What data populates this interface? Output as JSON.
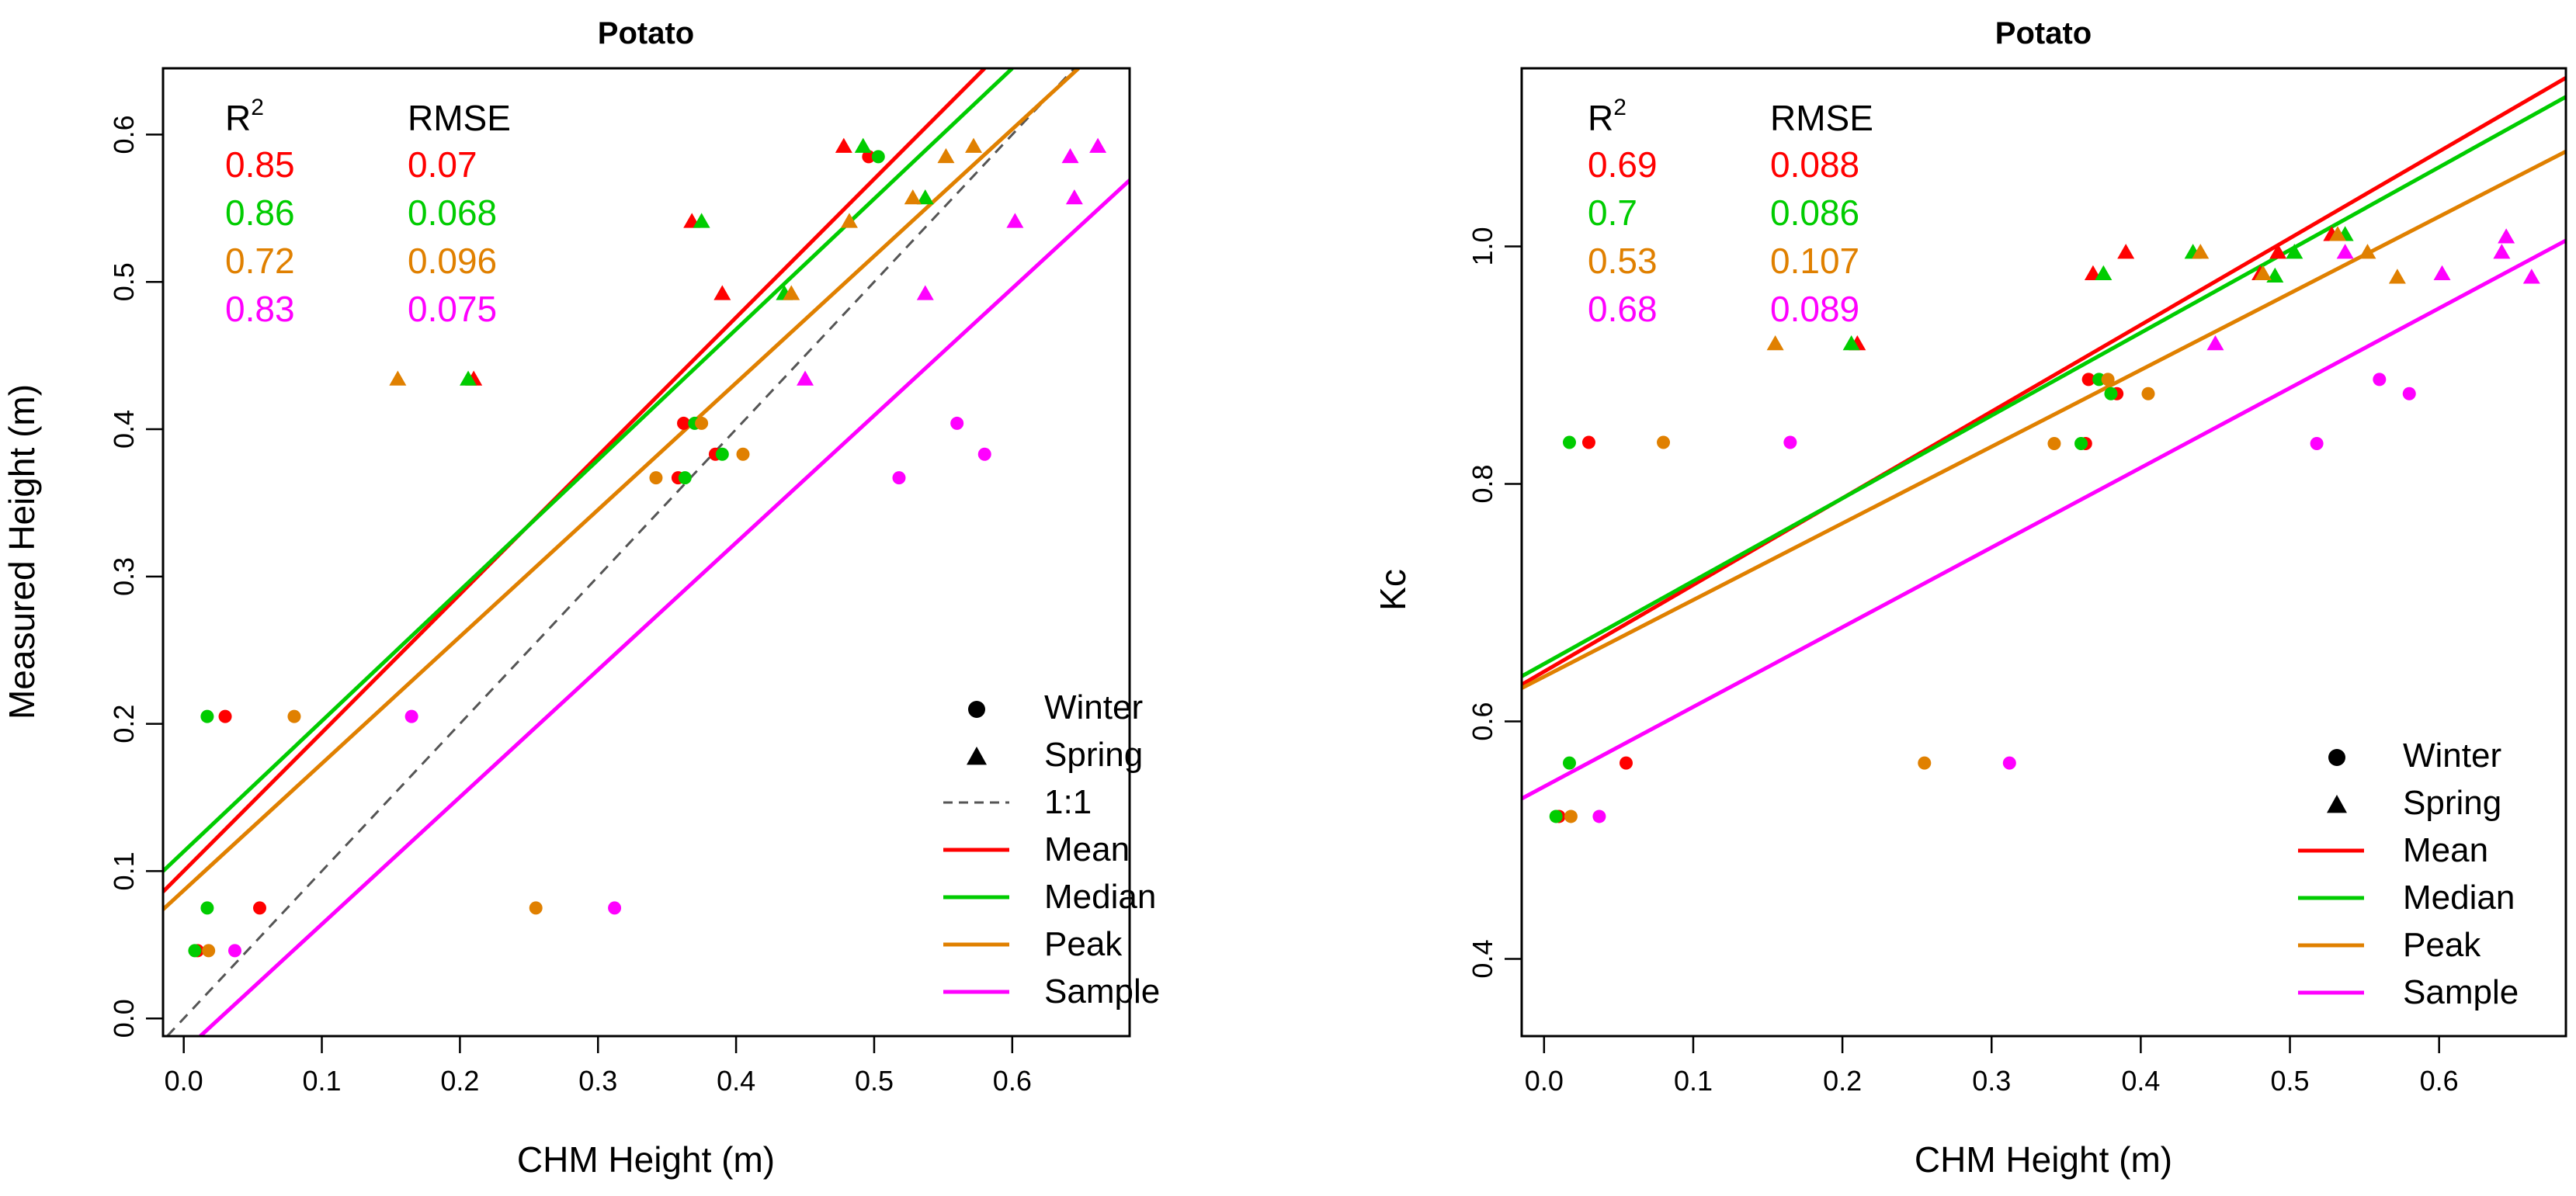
{
  "figure": {
    "caption": ""
  },
  "chart_data": [
    {
      "type": "scatter",
      "title": "Potato",
      "xlabel": "CHM Height (m)",
      "ylabel": "Measured Height (m)",
      "xlim": [
        -0.015,
        0.685
      ],
      "ylim": [
        -0.012,
        0.645
      ],
      "x_ticks": [
        "0.0",
        "0.1",
        "0.2",
        "0.3",
        "0.4",
        "0.5",
        "0.6"
      ],
      "y_ticks": [
        "0.0",
        "0.1",
        "0.2",
        "0.3",
        "0.4",
        "0.5",
        "0.6"
      ],
      "stats": {
        "r2_label": "R",
        "r2_superscript": "2",
        "rmse_label": "RMSE",
        "rows": [
          {
            "series": "Mean",
            "r2": "0.85",
            "rmse": "0.07"
          },
          {
            "series": "Median",
            "r2": "0.86",
            "rmse": "0.068"
          },
          {
            "series": "Peak",
            "r2": "0.72",
            "rmse": "0.096"
          },
          {
            "series": "Sample",
            "r2": "0.83",
            "rmse": "0.075"
          }
        ]
      },
      "legend": {
        "position": "bottom-right",
        "entries": [
          {
            "label": "Winter",
            "kind": "circle"
          },
          {
            "label": "Spring",
            "kind": "triangle"
          },
          {
            "label": "1:1",
            "kind": "dashed"
          },
          {
            "label": "Mean",
            "kind": "line",
            "series": "Mean"
          },
          {
            "label": "Median",
            "kind": "line",
            "series": "Median"
          },
          {
            "label": "Peak",
            "kind": "line",
            "series": "Peak"
          },
          {
            "label": "Sample",
            "kind": "line",
            "series": "Sample"
          }
        ]
      },
      "identity_line": true,
      "series": [
        {
          "name": "Mean",
          "color": "#ff0000",
          "fit": [
            [
              -0.015,
              0.086
            ],
            [
              0.58,
              0.645
            ]
          ],
          "points": [
            {
              "x": 0.03,
              "y": 0.205,
              "s": "winter"
            },
            {
              "x": 0.055,
              "y": 0.075,
              "s": "winter"
            },
            {
              "x": 0.01,
              "y": 0.046,
              "s": "winter"
            },
            {
              "x": 0.362,
              "y": 0.404,
              "s": "winter"
            },
            {
              "x": 0.385,
              "y": 0.383,
              "s": "winter"
            },
            {
              "x": 0.358,
              "y": 0.367,
              "s": "winter"
            },
            {
              "x": 0.496,
              "y": 0.585,
              "s": "winter"
            },
            {
              "x": 0.21,
              "y": 0.434,
              "s": "spring"
            },
            {
              "x": 0.368,
              "y": 0.541,
              "s": "spring"
            },
            {
              "x": 0.39,
              "y": 0.492,
              "s": "spring"
            },
            {
              "x": 0.478,
              "y": 0.592,
              "s": "spring"
            }
          ]
        },
        {
          "name": "Median",
          "color": "#00cc00",
          "fit": [
            [
              -0.015,
              0.1
            ],
            [
              0.6,
              0.645
            ]
          ],
          "points": [
            {
              "x": 0.017,
              "y": 0.205,
              "s": "winter"
            },
            {
              "x": 0.017,
              "y": 0.075,
              "s": "winter"
            },
            {
              "x": 0.008,
              "y": 0.046,
              "s": "winter"
            },
            {
              "x": 0.37,
              "y": 0.404,
              "s": "winter"
            },
            {
              "x": 0.39,
              "y": 0.383,
              "s": "winter"
            },
            {
              "x": 0.363,
              "y": 0.367,
              "s": "winter"
            },
            {
              "x": 0.503,
              "y": 0.585,
              "s": "winter"
            },
            {
              "x": 0.206,
              "y": 0.434,
              "s": "spring"
            },
            {
              "x": 0.375,
              "y": 0.541,
              "s": "spring"
            },
            {
              "x": 0.435,
              "y": 0.492,
              "s": "spring"
            },
            {
              "x": 0.492,
              "y": 0.592,
              "s": "spring"
            },
            {
              "x": 0.537,
              "y": 0.557,
              "s": "spring"
            }
          ]
        },
        {
          "name": "Peak",
          "color": "#e08000",
          "fit": [
            [
              -0.015,
              0.074
            ],
            [
              0.648,
              0.645
            ]
          ],
          "points": [
            {
              "x": 0.08,
              "y": 0.205,
              "s": "winter"
            },
            {
              "x": 0.255,
              "y": 0.075,
              "s": "winter"
            },
            {
              "x": 0.018,
              "y": 0.046,
              "s": "winter"
            },
            {
              "x": 0.375,
              "y": 0.404,
              "s": "winter"
            },
            {
              "x": 0.405,
              "y": 0.383,
              "s": "winter"
            },
            {
              "x": 0.342,
              "y": 0.367,
              "s": "winter"
            },
            {
              "x": 0.155,
              "y": 0.434,
              "s": "spring"
            },
            {
              "x": 0.44,
              "y": 0.492,
              "s": "spring"
            },
            {
              "x": 0.482,
              "y": 0.541,
              "s": "spring"
            },
            {
              "x": 0.528,
              "y": 0.557,
              "s": "spring"
            },
            {
              "x": 0.552,
              "y": 0.585,
              "s": "spring"
            },
            {
              "x": 0.572,
              "y": 0.592,
              "s": "spring"
            }
          ]
        },
        {
          "name": "Sample",
          "color": "#ff00ff",
          "fit": [
            [
              0.012,
              -0.012
            ],
            [
              0.685,
              0.569
            ]
          ],
          "points": [
            {
              "x": 0.165,
              "y": 0.205,
              "s": "winter"
            },
            {
              "x": 0.312,
              "y": 0.075,
              "s": "winter"
            },
            {
              "x": 0.037,
              "y": 0.046,
              "s": "winter"
            },
            {
              "x": 0.56,
              "y": 0.404,
              "s": "winter"
            },
            {
              "x": 0.58,
              "y": 0.383,
              "s": "winter"
            },
            {
              "x": 0.518,
              "y": 0.367,
              "s": "winter"
            },
            {
              "x": 0.45,
              "y": 0.434,
              "s": "spring"
            },
            {
              "x": 0.537,
              "y": 0.492,
              "s": "spring"
            },
            {
              "x": 0.602,
              "y": 0.541,
              "s": "spring"
            },
            {
              "x": 0.645,
              "y": 0.557,
              "s": "spring"
            },
            {
              "x": 0.642,
              "y": 0.585,
              "s": "spring"
            },
            {
              "x": 0.662,
              "y": 0.592,
              "s": "spring"
            }
          ]
        }
      ]
    },
    {
      "type": "scatter",
      "title": "Potato",
      "xlabel": "CHM Height (m)",
      "ylabel": "Kc",
      "xlim": [
        -0.015,
        0.685
      ],
      "ylim": [
        0.335,
        1.15
      ],
      "x_ticks": [
        "0.0",
        "0.1",
        "0.2",
        "0.3",
        "0.4",
        "0.5",
        "0.6"
      ],
      "y_ticks": [
        "0.4",
        "0.6",
        "0.8",
        "1.0"
      ],
      "stats": {
        "r2_label": "R",
        "r2_superscript": "2",
        "rmse_label": "RMSE",
        "rows": [
          {
            "series": "Mean",
            "r2": "0.69",
            "rmse": "0.088"
          },
          {
            "series": "Median",
            "r2": "0.7",
            "rmse": "0.086"
          },
          {
            "series": "Peak",
            "r2": "0.53",
            "rmse": "0.107"
          },
          {
            "series": "Sample",
            "r2": "0.68",
            "rmse": "0.089"
          }
        ]
      },
      "legend": {
        "position": "bottom-right",
        "entries": [
          {
            "label": "Winter",
            "kind": "circle"
          },
          {
            "label": "Spring",
            "kind": "triangle"
          },
          {
            "label": "Mean",
            "kind": "line",
            "series": "Mean"
          },
          {
            "label": "Median",
            "kind": "line",
            "series": "Median"
          },
          {
            "label": "Peak",
            "kind": "line",
            "series": "Peak"
          },
          {
            "label": "Sample",
            "kind": "line",
            "series": "Sample"
          }
        ]
      },
      "identity_line": false,
      "series": [
        {
          "name": "Mean",
          "color": "#ff0000",
          "fit": [
            [
              -0.015,
              0.631
            ],
            [
              0.685,
              1.142
            ]
          ],
          "points": [
            {
              "x": 0.03,
              "y": 0.835,
              "s": "winter"
            },
            {
              "x": 0.055,
              "y": 0.565,
              "s": "winter"
            },
            {
              "x": 0.01,
              "y": 0.52,
              "s": "winter"
            },
            {
              "x": 0.365,
              "y": 0.888,
              "s": "winter"
            },
            {
              "x": 0.384,
              "y": 0.876,
              "s": "winter"
            },
            {
              "x": 0.363,
              "y": 0.834,
              "s": "winter"
            },
            {
              "x": 0.21,
              "y": 0.918,
              "s": "spring"
            },
            {
              "x": 0.368,
              "y": 0.977,
              "s": "spring"
            },
            {
              "x": 0.39,
              "y": 0.995,
              "s": "spring"
            },
            {
              "x": 0.48,
              "y": 0.977,
              "s": "spring"
            },
            {
              "x": 0.492,
              "y": 0.995,
              "s": "spring"
            },
            {
              "x": 0.528,
              "y": 1.01,
              "s": "spring"
            }
          ]
        },
        {
          "name": "Median",
          "color": "#00cc00",
          "fit": [
            [
              -0.015,
              0.638
            ],
            [
              0.685,
              1.126
            ]
          ],
          "points": [
            {
              "x": 0.017,
              "y": 0.835,
              "s": "winter"
            },
            {
              "x": 0.017,
              "y": 0.565,
              "s": "winter"
            },
            {
              "x": 0.008,
              "y": 0.52,
              "s": "winter"
            },
            {
              "x": 0.372,
              "y": 0.888,
              "s": "winter"
            },
            {
              "x": 0.38,
              "y": 0.876,
              "s": "winter"
            },
            {
              "x": 0.36,
              "y": 0.834,
              "s": "winter"
            },
            {
              "x": 0.206,
              "y": 0.918,
              "s": "spring"
            },
            {
              "x": 0.375,
              "y": 0.977,
              "s": "spring"
            },
            {
              "x": 0.435,
              "y": 0.995,
              "s": "spring"
            },
            {
              "x": 0.49,
              "y": 0.975,
              "s": "spring"
            },
            {
              "x": 0.503,
              "y": 0.995,
              "s": "spring"
            },
            {
              "x": 0.537,
              "y": 1.01,
              "s": "spring"
            }
          ]
        },
        {
          "name": "Peak",
          "color": "#e08000",
          "fit": [
            [
              -0.015,
              0.628
            ],
            [
              0.685,
              1.08
            ]
          ],
          "points": [
            {
              "x": 0.08,
              "y": 0.835,
              "s": "winter"
            },
            {
              "x": 0.255,
              "y": 0.565,
              "s": "winter"
            },
            {
              "x": 0.018,
              "y": 0.52,
              "s": "winter"
            },
            {
              "x": 0.378,
              "y": 0.888,
              "s": "winter"
            },
            {
              "x": 0.405,
              "y": 0.876,
              "s": "winter"
            },
            {
              "x": 0.342,
              "y": 0.834,
              "s": "winter"
            },
            {
              "x": 0.155,
              "y": 0.918,
              "s": "spring"
            },
            {
              "x": 0.44,
              "y": 0.995,
              "s": "spring"
            },
            {
              "x": 0.482,
              "y": 0.977,
              "s": "spring"
            },
            {
              "x": 0.532,
              "y": 1.01,
              "s": "spring"
            },
            {
              "x": 0.552,
              "y": 0.995,
              "s": "spring"
            },
            {
              "x": 0.572,
              "y": 0.974,
              "s": "spring"
            }
          ]
        },
        {
          "name": "Sample",
          "color": "#ff00ff",
          "fit": [
            [
              -0.015,
              0.535
            ],
            [
              0.685,
              1.005
            ]
          ],
          "points": [
            {
              "x": 0.165,
              "y": 0.835,
              "s": "winter"
            },
            {
              "x": 0.312,
              "y": 0.565,
              "s": "winter"
            },
            {
              "x": 0.037,
              "y": 0.52,
              "s": "winter"
            },
            {
              "x": 0.56,
              "y": 0.888,
              "s": "winter"
            },
            {
              "x": 0.58,
              "y": 0.876,
              "s": "winter"
            },
            {
              "x": 0.518,
              "y": 0.834,
              "s": "winter"
            },
            {
              "x": 0.45,
              "y": 0.918,
              "s": "spring"
            },
            {
              "x": 0.537,
              "y": 0.995,
              "s": "spring"
            },
            {
              "x": 0.602,
              "y": 0.977,
              "s": "spring"
            },
            {
              "x": 0.642,
              "y": 0.995,
              "s": "spring"
            },
            {
              "x": 0.645,
              "y": 1.008,
              "s": "spring"
            },
            {
              "x": 0.662,
              "y": 0.974,
              "s": "spring"
            }
          ]
        }
      ]
    }
  ]
}
